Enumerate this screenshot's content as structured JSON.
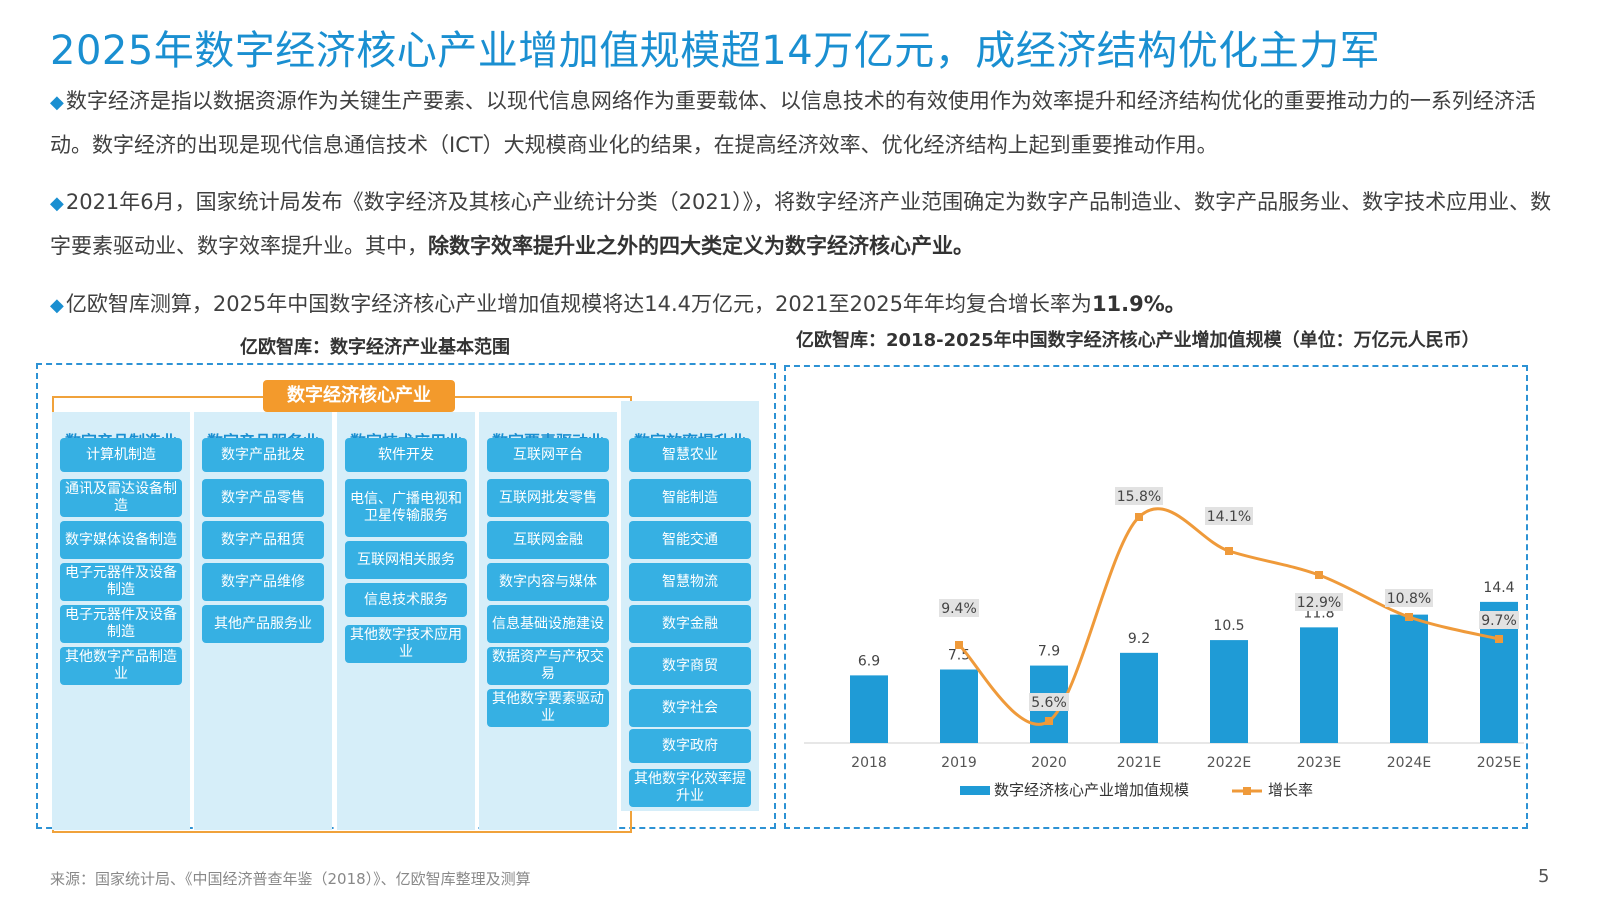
{
  "title": "2025年数字经济核心产业增加值规模超14万亿元，成经济结构优化主力军",
  "bullet_glyph": "◆",
  "para1": "数字经济是指以数据资源作为关键生产要素、以现代信息网络作为重要载体、以信息技术的有效使用作为效率提升和经济结构优化的重要推动力的一系列经济活动。数字经济的出现是现代信息通信技术（ICT）大规模商业化的结果，在提高经济效率、优化经济结构上起到重要推动作用。",
  "para2": "2021年6月，国家统计局发布《数字经济及其核心产业统计分类（2021）》，将数字经济产业范围确定为数字产品制造业、数字产品服务业、数字技术应用业、数字要素驱动业、数字效率提升业。其中，",
  "para2_bold": "除数字效率提升业之外的四大类定义为数字经济核心产业。",
  "para3": "亿欧智库测算，2025年中国数字经济核心产业增加值规模将达14.4万亿元，2021至2025年年均复合增长率为",
  "para3_bold": "11.9%。",
  "left_panel_title": "亿欧智库：数字经济产业基本范围",
  "core_label": "数字经济核心产业",
  "columns": [
    {
      "head": "数字产品制造业",
      "items": [
        "计算机制造",
        "通讯及雷达设备制造",
        "数字媒体设备制造",
        "电子元器件及设备制造",
        "电子元器件及设备制造",
        "其他数字产品制造业"
      ]
    },
    {
      "head": "数字产品服务业",
      "items": [
        "数字产品批发",
        "数字产品零售",
        "数字产品租赁",
        "数字产品维修",
        "其他产品服务业"
      ]
    },
    {
      "head": "数字技术应用业",
      "items": [
        "软件开发",
        "电信、广播电视和卫星传输服务",
        "互联网相关服务",
        "信息技术服务",
        "其他数字技术应用业"
      ]
    },
    {
      "head": "数字要素驱动业",
      "items": [
        "互联网平台",
        "互联网批发零售",
        "互联网金融",
        "数字内容与媒体",
        "信息基础设施建设",
        "数据资产与产权交易",
        "其他数字要素驱动业"
      ]
    },
    {
      "head": "数字效率提升业",
      "items": [
        "智慧农业",
        "智能制造",
        "智能交通",
        "智慧物流",
        "数字金融",
        "数字商贸",
        "数字社会",
        "数字政府",
        "其他数字化效率提升业"
      ]
    }
  ],
  "right_panel_title": "亿欧智库：2018-2025年中国数字经济核心产业增加值规模（单位：万亿元人民币）",
  "chart_data": {
    "type": "bar+line",
    "title": "亿欧智库：2018-2025年中国数字经济核心产业增加值规模（单位：万亿元人民币）",
    "categories": [
      "2018",
      "2019",
      "2020",
      "2021E",
      "2022E",
      "2023E",
      "2024E",
      "2025E"
    ],
    "series": [
      {
        "name": "数字经济核心产业增加值规模",
        "type": "bar",
        "values": [
          6.9,
          7.5,
          7.9,
          9.2,
          10.5,
          11.8,
          13.1,
          14.4
        ],
        "labels": [
          "6.9",
          "7.5",
          "7.9",
          "9.2",
          "10.5",
          "11.8",
          "13.1",
          "14.4"
        ]
      },
      {
        "name": "增长率",
        "type": "line",
        "values": [
          null,
          9.4,
          5.6,
          15.8,
          14.1,
          12.9,
          10.8,
          9.7
        ],
        "labels": [
          "",
          "9.4%",
          "5.6%",
          "15.8%",
          "14.1%",
          "12.9%",
          "10.8%",
          "9.7%"
        ]
      }
    ],
    "colors": {
      "bar": "#1f9bd6",
      "line": "#ef9a3a"
    },
    "ylim": [
      0,
      16
    ],
    "legend_position": "bottom"
  },
  "footer_source": "来源：国家统计局、《中国经济普查年鉴（2018）》、亿欧智库整理及测算",
  "page_number": "5"
}
